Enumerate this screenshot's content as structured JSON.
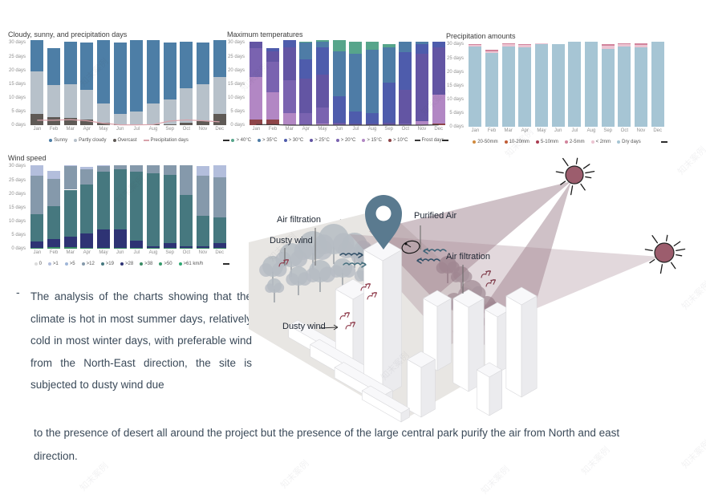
{
  "page": {
    "watermark": "知末案例"
  },
  "analysis_text": {
    "bullet": "-",
    "paragraph1": "The analysis of the charts showing that the climate is hot in most summer days, relatively cold in most winter days, with preferable wind from the North-East direction, the site is subjected to dusty wind due",
    "paragraph2": "to the presence of desert all around the project but the presence of the large central park purify the air from North and east direction."
  },
  "illustration": {
    "labels": {
      "air_filtration_left": "Air filtration",
      "purified_air_left": "Purified Air",
      "dusty_wind_left": "Dusty wind",
      "purified_air_right": "Purified Air",
      "air_filtration_right": "Air filtration",
      "dusty_wind_bottom": "Dusty wind"
    },
    "colors": {
      "pin": "#5a7a8f",
      "sun": "#9c5d6d",
      "beam": "#8d6b79",
      "purified_wind": "#2f4e66",
      "dusty_wind": "#8e3a4a"
    }
  },
  "chart_data": [
    {
      "type": "stacked-bar",
      "title": "Cloudy, sunny, and precipitation days",
      "categories": [
        "Jan",
        "Feb",
        "Mar",
        "Apr",
        "May",
        "Jun",
        "Jul",
        "Aug",
        "Sep",
        "Oct",
        "Nov",
        "Dec"
      ],
      "ylim": [
        0,
        31
      ],
      "ytick_values": [
        0,
        5,
        10,
        15,
        20,
        25,
        30
      ],
      "ytick_suffix": " days",
      "series": [
        {
          "name": "Overcast",
          "color": "#5f5a56",
          "values": [
            4,
            3,
            2.5,
            2,
            1,
            0.3,
            0.3,
            0.3,
            0.3,
            0.8,
            1.5,
            4
          ]
        },
        {
          "name": "Partly cloudy",
          "color": "#b7c1ca",
          "values": [
            15.5,
            11.5,
            12.5,
            11,
            7,
            3.7,
            4.7,
            7.7,
            9.2,
            12.7,
            13.5,
            13.5
          ]
        },
        {
          "name": "Sunny",
          "color": "#4d7ea6",
          "values": [
            11.5,
            13.5,
            15.5,
            17,
            23,
            26,
            26,
            23,
            20.5,
            17,
            15,
            13.5
          ]
        }
      ],
      "line": {
        "name": "Precipitation days",
        "color": "#d9a3ab",
        "values": [
          1.8,
          1.8,
          2,
          1.6,
          0.7,
          0.1,
          0.1,
          0.2,
          1.5,
          1.9,
          1.6,
          1.2
        ]
      },
      "legend": [
        {
          "label": "Sunny",
          "color": "#4d7ea6",
          "type": "dot"
        },
        {
          "label": "Partly cloudy",
          "color": "#b7c1ca",
          "type": "dot"
        },
        {
          "label": "Overcast",
          "color": "#5f5a56",
          "type": "dot"
        },
        {
          "label": "Precipitation days",
          "color": "#d9a3ab",
          "type": "line"
        }
      ]
    },
    {
      "type": "stacked-bar",
      "title": "Maximum temperatures",
      "categories": [
        "Jan",
        "Feb",
        "Mar",
        "Apr",
        "May",
        "Jun",
        "Jul",
        "Aug",
        "Sep",
        "Oct",
        "Nov",
        "Dec"
      ],
      "ylim": [
        0,
        31
      ],
      "ytick_values": [
        0,
        5,
        10,
        15,
        20,
        25,
        30
      ],
      "ytick_suffix": " days",
      "series": [
        {
          "name": "> 10°C",
          "color": "#8e4448",
          "values": [
            2,
            2,
            0,
            0,
            0,
            0,
            0,
            0,
            0,
            0,
            0,
            0.5
          ]
        },
        {
          "name": "> 15°C",
          "color": "#b287c4",
          "values": [
            15.5,
            10,
            4.5,
            0,
            0.5,
            0,
            0,
            0,
            0,
            0,
            1.5,
            10.5
          ]
        },
        {
          "name": "> 20°C",
          "color": "#7a63b0",
          "values": [
            10.5,
            11,
            12,
            4.5,
            6,
            0.5,
            0,
            0,
            0,
            0.5,
            0,
            0
          ]
        },
        {
          "name": "> 25°C",
          "color": "#6355a3",
          "values": [
            2.5,
            4,
            12,
            12.5,
            12,
            0.5,
            0.5,
            0.5,
            1,
            12.5,
            24.5,
            17.5
          ]
        },
        {
          "name": "> 30°C",
          "color": "#4e5cac",
          "values": [
            0,
            1,
            2.5,
            7,
            10,
            9.5,
            4.5,
            4,
            14.5,
            13.5,
            3.5,
            2
          ]
        },
        {
          "name": "> 35°C",
          "color": "#4e7ca6",
          "values": [
            0,
            0,
            0,
            6,
            2,
            16.5,
            21,
            23,
            13,
            4,
            1,
            0
          ]
        },
        {
          "name": "> 40°C",
          "color": "#57a58b",
          "values": [
            0,
            0,
            0,
            0.5,
            0.5,
            4,
            4.5,
            3,
            1,
            0,
            0,
            0
          ]
        }
      ],
      "line": {
        "name": "Frost days",
        "color": "#3a3a3a",
        "values": [
          0.2,
          0.2,
          0,
          0,
          0,
          0,
          0,
          0,
          0,
          0,
          0,
          0.1
        ]
      },
      "legend": [
        {
          "label": "> 40°C",
          "color": "#57a58b",
          "type": "dot"
        },
        {
          "label": "> 35°C",
          "color": "#4e7ca6",
          "type": "dot"
        },
        {
          "label": "> 30°C",
          "color": "#4e5cac",
          "type": "dot"
        },
        {
          "label": "> 25°C",
          "color": "#6355a3",
          "type": "dot"
        },
        {
          "label": "> 20°C",
          "color": "#7a63b0",
          "type": "dot"
        },
        {
          "label": "> 15°C",
          "color": "#b287c4",
          "type": "dot"
        },
        {
          "label": "> 10°C",
          "color": "#8e4448",
          "type": "dot"
        },
        {
          "label": "Frost days",
          "color": "#3a3a3a",
          "type": "line"
        }
      ]
    },
    {
      "type": "stacked-bar",
      "title": "Precipitation amounts",
      "categories": [
        "Jan",
        "Feb",
        "Mar",
        "Apr",
        "May",
        "Jun",
        "Jul",
        "Aug",
        "Sep",
        "Oct",
        "Nov",
        "Dec"
      ],
      "ylim": [
        0,
        31
      ],
      "ytick_values": [
        0,
        5,
        10,
        15,
        20,
        25,
        30
      ],
      "ytick_suffix": " days",
      "series": [
        {
          "name": "Dry days",
          "color": "#a6c5d4",
          "values": [
            29.3,
            26.8,
            29.3,
            29,
            30.3,
            30,
            31,
            31,
            28.3,
            29.3,
            29,
            31
          ]
        },
        {
          "name": "< 2mm",
          "color": "#ecc4d2",
          "values": [
            0.6,
            0.8,
            0.8,
            0.8,
            0.2,
            0,
            0,
            0,
            1.3,
            0.8,
            0.9,
            0
          ]
        },
        {
          "name": "2-5mm",
          "color": "#d2849c",
          "values": [
            0.3,
            0.6,
            0.3,
            0.3,
            0,
            0,
            0,
            0,
            0.4,
            0.3,
            0.4,
            0
          ]
        },
        {
          "name": "5-10mm",
          "color": "#a93c50",
          "values": [
            0,
            0,
            0,
            0,
            0,
            0,
            0,
            0,
            0,
            0,
            0,
            0
          ]
        },
        {
          "name": "10-20mm",
          "color": "#c05c35",
          "values": [
            0,
            0,
            0,
            0,
            0,
            0,
            0,
            0,
            0,
            0,
            0,
            0
          ]
        },
        {
          "name": "20-50mm",
          "color": "#d08a3e",
          "values": [
            0,
            0,
            0,
            0,
            0,
            0,
            0,
            0,
            0,
            0,
            0,
            0
          ]
        }
      ],
      "legend": [
        {
          "label": "20-50mm",
          "color": "#d08a3e",
          "type": "dot"
        },
        {
          "label": "10-20mm",
          "color": "#c05c35",
          "type": "dot"
        },
        {
          "label": "5-10mm",
          "color": "#a93c50",
          "type": "dot"
        },
        {
          "label": "2-5mm",
          "color": "#d2849c",
          "type": "dot"
        },
        {
          "label": "< 2mm",
          "color": "#ecc4d2",
          "type": "dot"
        },
        {
          "label": "Dry days",
          "color": "#a6c5d4",
          "type": "dot"
        }
      ]
    },
    {
      "type": "stacked-bar",
      "title": "Wind speed",
      "categories": [
        "Jan",
        "Feb",
        "Mar",
        "Apr",
        "May",
        "Jun",
        "Jul",
        "Aug",
        "Sep",
        "Oct",
        "Nov",
        "Dec"
      ],
      "ylim": [
        0,
        31
      ],
      "ytick_values": [
        0,
        5,
        10,
        15,
        20,
        25,
        30
      ],
      "ytick_suffix": " days",
      "series": [
        {
          "name": "> 38",
          "color": "#3a8a63",
          "values": [
            0.3,
            0.5,
            0.5,
            0.3,
            0.2,
            0.2,
            0.2,
            0.2,
            0.2,
            0.2,
            0.2,
            0.2
          ]
        },
        {
          "name": "> 28",
          "color": "#2e3374",
          "values": [
            2.2,
            3,
            4,
            5.2,
            6.8,
            6.8,
            2.8,
            0.8,
            1.8,
            0.8,
            0.8,
            1.8
          ]
        },
        {
          "name": "> 19",
          "color": "#46787f",
          "values": [
            10,
            12,
            17,
            18,
            21,
            22,
            25,
            26.5,
            25,
            18.5,
            11,
            9.5
          ]
        },
        {
          "name": "> 12",
          "color": "#8599ab",
          "values": [
            14,
            10,
            8.5,
            5.5,
            2,
            1.5,
            2.5,
            3,
            3.5,
            11,
            14.5,
            14.5
          ]
        },
        {
          "name": "> 1",
          "color": "#b3bedc",
          "values": [
            4,
            3,
            0.5,
            0.8,
            0.5,
            0,
            0,
            0,
            0,
            0,
            3.5,
            4.5
          ]
        }
      ],
      "legend": [
        {
          "label": "0",
          "color": "#dcdcdc",
          "type": "dot"
        },
        {
          "label": ">1",
          "color": "#b3bedc",
          "type": "dot"
        },
        {
          "label": ">5",
          "color": "#9fb6d8",
          "type": "dot"
        },
        {
          "label": ">12",
          "color": "#8599ab",
          "type": "dot"
        },
        {
          "label": ">19",
          "color": "#46787f",
          "type": "dot"
        },
        {
          "label": ">28",
          "color": "#2e3374",
          "type": "dot"
        },
        {
          "label": ">38",
          "color": "#3a8a63",
          "type": "dot"
        },
        {
          "label": ">50",
          "color": "#35996b",
          "type": "dot"
        },
        {
          "label": ">61 km/h",
          "color": "#2fa873",
          "type": "dot"
        }
      ]
    }
  ]
}
